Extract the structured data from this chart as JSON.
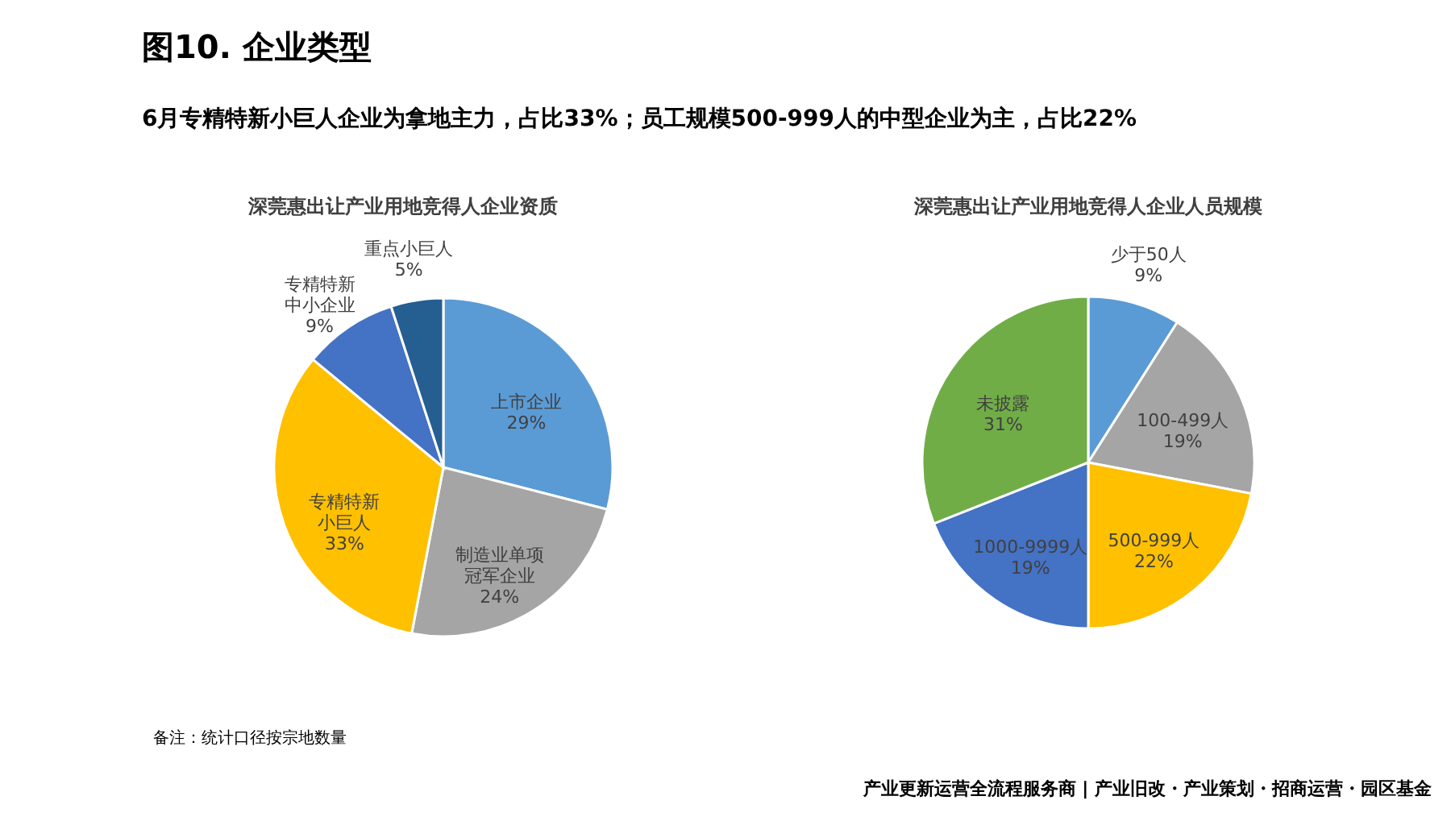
{
  "chart_data": [
    {
      "type": "pie",
      "title": "深莞惠出让产业用地竞得人企业资质",
      "categories": [
        "上市企业",
        "制造业单项冠军企业",
        "专精特新小巨人",
        "专精特新中小企业",
        "重点小巨人"
      ],
      "values": [
        29,
        24,
        33,
        9,
        5
      ],
      "value_labels": [
        "29%",
        "24%",
        "33%",
        "9%",
        "5%"
      ],
      "colors": [
        "#5b9bd5",
        "#a5a5a5",
        "#ffc000",
        "#4472c4",
        "#255e91"
      ],
      "annotations": [
        "图10. 企业类型",
        "6月专精特新小巨人企业为拿地主力，占比33%；员工规模500-999人的中型企业为主，占比22%",
        "备注：统计口径按宗地数量"
      ]
    },
    {
      "type": "pie",
      "title": "深莞惠出让产业用地竞得人企业人员规模",
      "categories": [
        "少于50人",
        "100-499人",
        "500-999人",
        "1000-9999人",
        "未披露"
      ],
      "values": [
        9,
        19,
        22,
        19,
        31
      ],
      "value_labels": [
        "9%",
        "19%",
        "22%",
        "19%",
        "31%"
      ],
      "colors": [
        "#5b9bd5",
        "#a5a5a5",
        "#ffc000",
        "#4472c4",
        "#70ad47"
      ],
      "annotations": [
        "产业更新运营全流程服务商 | 产业旧改・产业策划・招商运营・园区基金"
      ]
    }
  ]
}
